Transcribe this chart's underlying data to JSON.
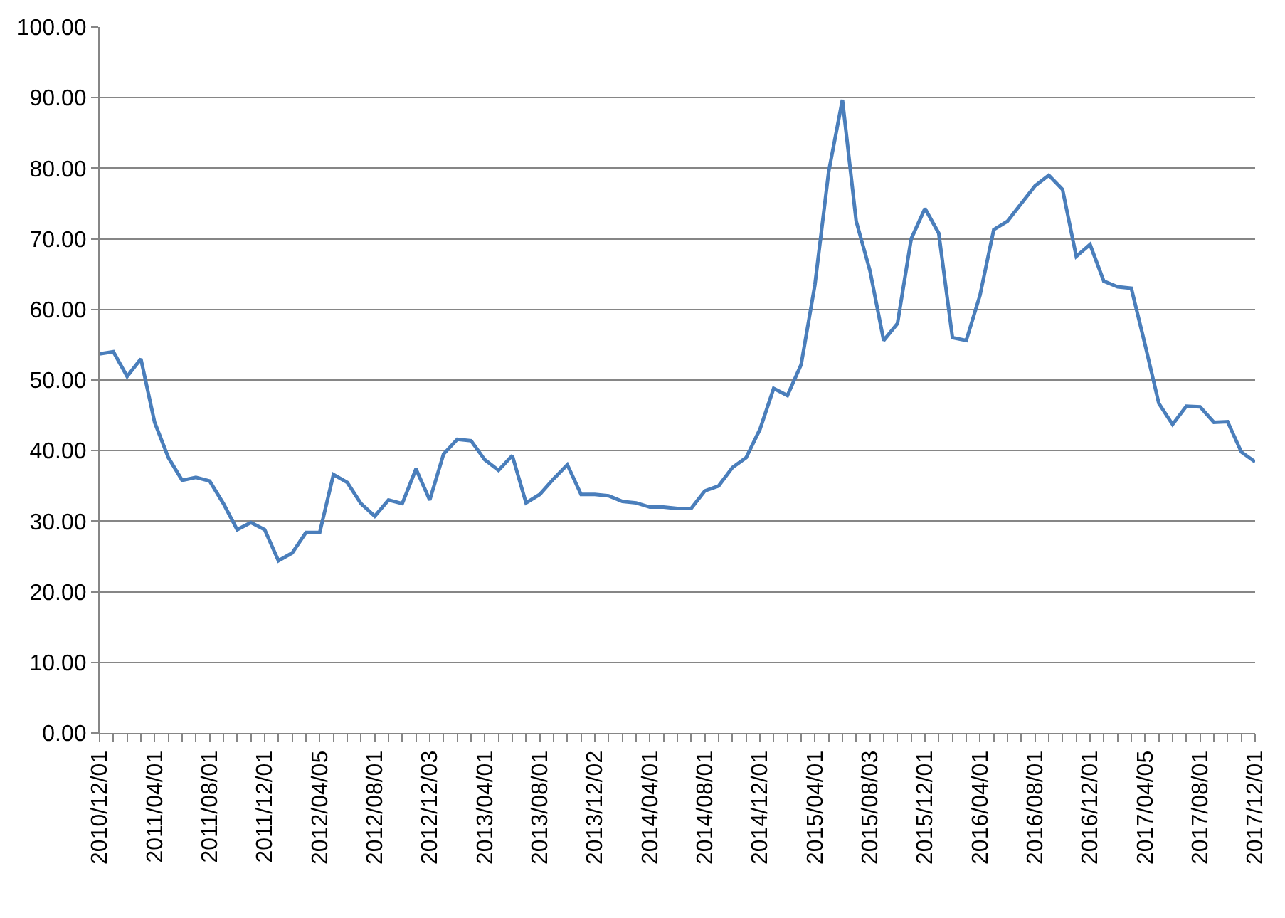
{
  "chart_data": {
    "type": "line",
    "categories": [
      "2010/12/01",
      null,
      null,
      null,
      "2011/04/01",
      null,
      null,
      null,
      "2011/08/01",
      null,
      null,
      null,
      "2011/12/01",
      null,
      null,
      null,
      "2012/04/05",
      null,
      null,
      null,
      "2012/08/01",
      null,
      null,
      null,
      "2012/12/03",
      null,
      null,
      null,
      "2013/04/01",
      null,
      null,
      null,
      "2013/08/01",
      null,
      null,
      null,
      "2013/12/02",
      null,
      null,
      null,
      "2014/04/01",
      null,
      null,
      null,
      "2014/08/01",
      null,
      null,
      null,
      "2014/12/01",
      null,
      null,
      null,
      "2015/04/01",
      null,
      null,
      null,
      "2015/08/03",
      null,
      null,
      null,
      "2015/12/01",
      null,
      null,
      null,
      "2016/04/01",
      null,
      null,
      null,
      "2016/08/01",
      null,
      null,
      null,
      "2016/12/01",
      null,
      null,
      null,
      "2017/04/05",
      null,
      null,
      null,
      "2017/08/01",
      null,
      null,
      null,
      "2017/12/01"
    ],
    "series": [
      {
        "color": "#4a7ebb",
        "values": [
          53.7,
          54,
          50.5,
          53,
          44,
          39,
          35.8,
          36.2,
          35.7,
          32.5,
          28.8,
          29.8,
          28.8,
          24.4,
          25.5,
          28.4,
          28.4,
          36.6,
          35.5,
          32.5,
          30.7,
          33,
          32.5,
          37.4,
          33,
          39.5,
          41.6,
          41.4,
          38.7,
          37.2,
          39.3,
          32.6,
          33.8,
          36,
          38,
          33.8,
          33.8,
          33.6,
          32.8,
          32.6,
          32,
          32,
          31.8,
          31.8,
          34.3,
          35,
          37.6,
          39,
          43,
          48.8,
          47.8,
          52.2,
          63.5,
          79.5,
          89.7,
          72.5,
          65.5,
          55.6,
          58,
          70,
          74.3,
          70.8,
          56,
          55.6,
          62,
          71.3,
          72.5,
          75,
          77.5,
          79,
          77,
          67.5,
          69.2,
          64,
          63.2,
          63,
          55,
          46.7,
          43.7,
          46.3,
          46.2,
          44,
          44.1,
          39.8,
          38.4
        ]
      }
    ],
    "ylim": [
      0,
      100
    ],
    "yticks": [
      {
        "value": 0,
        "label": "0.00"
      },
      {
        "value": 10,
        "label": "10.00"
      },
      {
        "value": 20,
        "label": "20.00"
      },
      {
        "value": 30,
        "label": "30.00"
      },
      {
        "value": 40,
        "label": "40.00"
      },
      {
        "value": 50,
        "label": "50.00"
      },
      {
        "value": 60,
        "label": "60.00"
      },
      {
        "value": 70,
        "label": "70.00"
      },
      {
        "value": 80,
        "label": "80.00"
      },
      {
        "value": 90,
        "label": "90.00"
      },
      {
        "value": 100,
        "label": "100.00"
      }
    ],
    "grid": "y",
    "marker": "none",
    "line_style": "solid"
  }
}
